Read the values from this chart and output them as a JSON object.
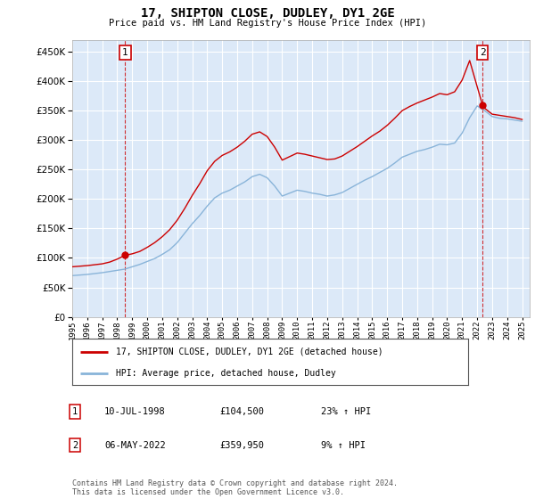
{
  "title": "17, SHIPTON CLOSE, DUDLEY, DY1 2GE",
  "subtitle": "Price paid vs. HM Land Registry's House Price Index (HPI)",
  "ylabel_values": [
    0,
    50000,
    100000,
    150000,
    200000,
    250000,
    300000,
    350000,
    400000,
    450000
  ],
  "ylim": [
    0,
    470000
  ],
  "xlim_start": 1995.0,
  "xlim_end": 2025.5,
  "plot_bg_color": "#dce9f8",
  "grid_color": "#ffffff",
  "red_line_color": "#cc0000",
  "blue_line_color": "#89b4d9",
  "sale1_x": 1998.53,
  "sale1_y": 104500,
  "sale2_x": 2022.35,
  "sale2_y": 359950,
  "legend_label_red": "17, SHIPTON CLOSE, DUDLEY, DY1 2GE (detached house)",
  "legend_label_blue": "HPI: Average price, detached house, Dudley",
  "annotation1_label": "1",
  "annotation2_label": "2",
  "table_row1": [
    "1",
    "10-JUL-1998",
    "£104,500",
    "23% ↑ HPI"
  ],
  "table_row2": [
    "2",
    "06-MAY-2022",
    "£359,950",
    "9% ↑ HPI"
  ],
  "footnote": "Contains HM Land Registry data © Crown copyright and database right 2024.\nThis data is licensed under the Open Government Licence v3.0.",
  "xtick_years": [
    1995,
    1996,
    1997,
    1998,
    1999,
    2000,
    2001,
    2002,
    2003,
    2004,
    2005,
    2006,
    2007,
    2008,
    2009,
    2010,
    2011,
    2012,
    2013,
    2014,
    2015,
    2016,
    2017,
    2018,
    2019,
    2020,
    2021,
    2022,
    2023,
    2024,
    2025
  ],
  "hpi_years": [
    1995.0,
    1995.5,
    1996.0,
    1996.5,
    1997.0,
    1997.5,
    1998.0,
    1998.5,
    1999.0,
    1999.5,
    2000.0,
    2000.5,
    2001.0,
    2001.5,
    2002.0,
    2002.5,
    2003.0,
    2003.5,
    2004.0,
    2004.5,
    2005.0,
    2005.5,
    2006.0,
    2006.5,
    2007.0,
    2007.5,
    2008.0,
    2008.5,
    2009.0,
    2009.5,
    2010.0,
    2010.5,
    2011.0,
    2011.5,
    2012.0,
    2012.5,
    2013.0,
    2013.5,
    2014.0,
    2014.5,
    2015.0,
    2015.5,
    2016.0,
    2016.5,
    2017.0,
    2017.5,
    2018.0,
    2018.5,
    2019.0,
    2019.5,
    2020.0,
    2020.5,
    2021.0,
    2021.5,
    2022.0,
    2022.5,
    2023.0,
    2023.5,
    2024.0,
    2024.5,
    2025.0
  ],
  "hpi_values": [
    70000,
    71000,
    72000,
    73500,
    75000,
    77000,
    79000,
    81000,
    85000,
    89000,
    94000,
    99000,
    106000,
    114000,
    126000,
    142000,
    158000,
    172000,
    188000,
    202000,
    210000,
    215000,
    222000,
    229000,
    238000,
    242000,
    236000,
    222000,
    205000,
    210000,
    215000,
    213000,
    210000,
    208000,
    205000,
    207000,
    211000,
    218000,
    225000,
    232000,
    238000,
    245000,
    252000,
    261000,
    271000,
    276000,
    281000,
    284000,
    288000,
    293000,
    292000,
    295000,
    312000,
    338000,
    358000,
    350000,
    340000,
    337000,
    336000,
    334000,
    332000
  ],
  "red_years": [
    1995.0,
    1995.5,
    1996.0,
    1996.5,
    1997.0,
    1997.5,
    1998.0,
    1998.53,
    1999.0,
    1999.5,
    2000.0,
    2000.5,
    2001.0,
    2001.5,
    2002.0,
    2002.5,
    2003.0,
    2003.5,
    2004.0,
    2004.5,
    2005.0,
    2005.5,
    2006.0,
    2006.5,
    2007.0,
    2007.5,
    2008.0,
    2008.5,
    2009.0,
    2009.5,
    2010.0,
    2010.5,
    2011.0,
    2011.5,
    2012.0,
    2012.5,
    2013.0,
    2013.5,
    2014.0,
    2014.5,
    2015.0,
    2015.5,
    2016.0,
    2016.5,
    2017.0,
    2017.5,
    2018.0,
    2018.5,
    2019.0,
    2019.5,
    2020.0,
    2020.5,
    2021.0,
    2021.5,
    2022.35,
    2022.5,
    2023.0,
    2023.5,
    2024.0,
    2024.5,
    2025.0
  ],
  "red_values": [
    85000,
    86000,
    87000,
    88500,
    90000,
    93000,
    98000,
    104500,
    107000,
    111000,
    118000,
    126000,
    136000,
    148000,
    164000,
    184000,
    206000,
    226000,
    248000,
    264000,
    274000,
    280000,
    288000,
    298000,
    310000,
    314000,
    306000,
    288000,
    266000,
    272000,
    278000,
    276000,
    273000,
    270000,
    267000,
    268000,
    273000,
    281000,
    289000,
    298000,
    307000,
    315000,
    325000,
    337000,
    350000,
    357000,
    363000,
    368000,
    373000,
    379000,
    377000,
    382000,
    402000,
    435000,
    359950,
    354000,
    344000,
    342000,
    340000,
    338000,
    335000
  ]
}
